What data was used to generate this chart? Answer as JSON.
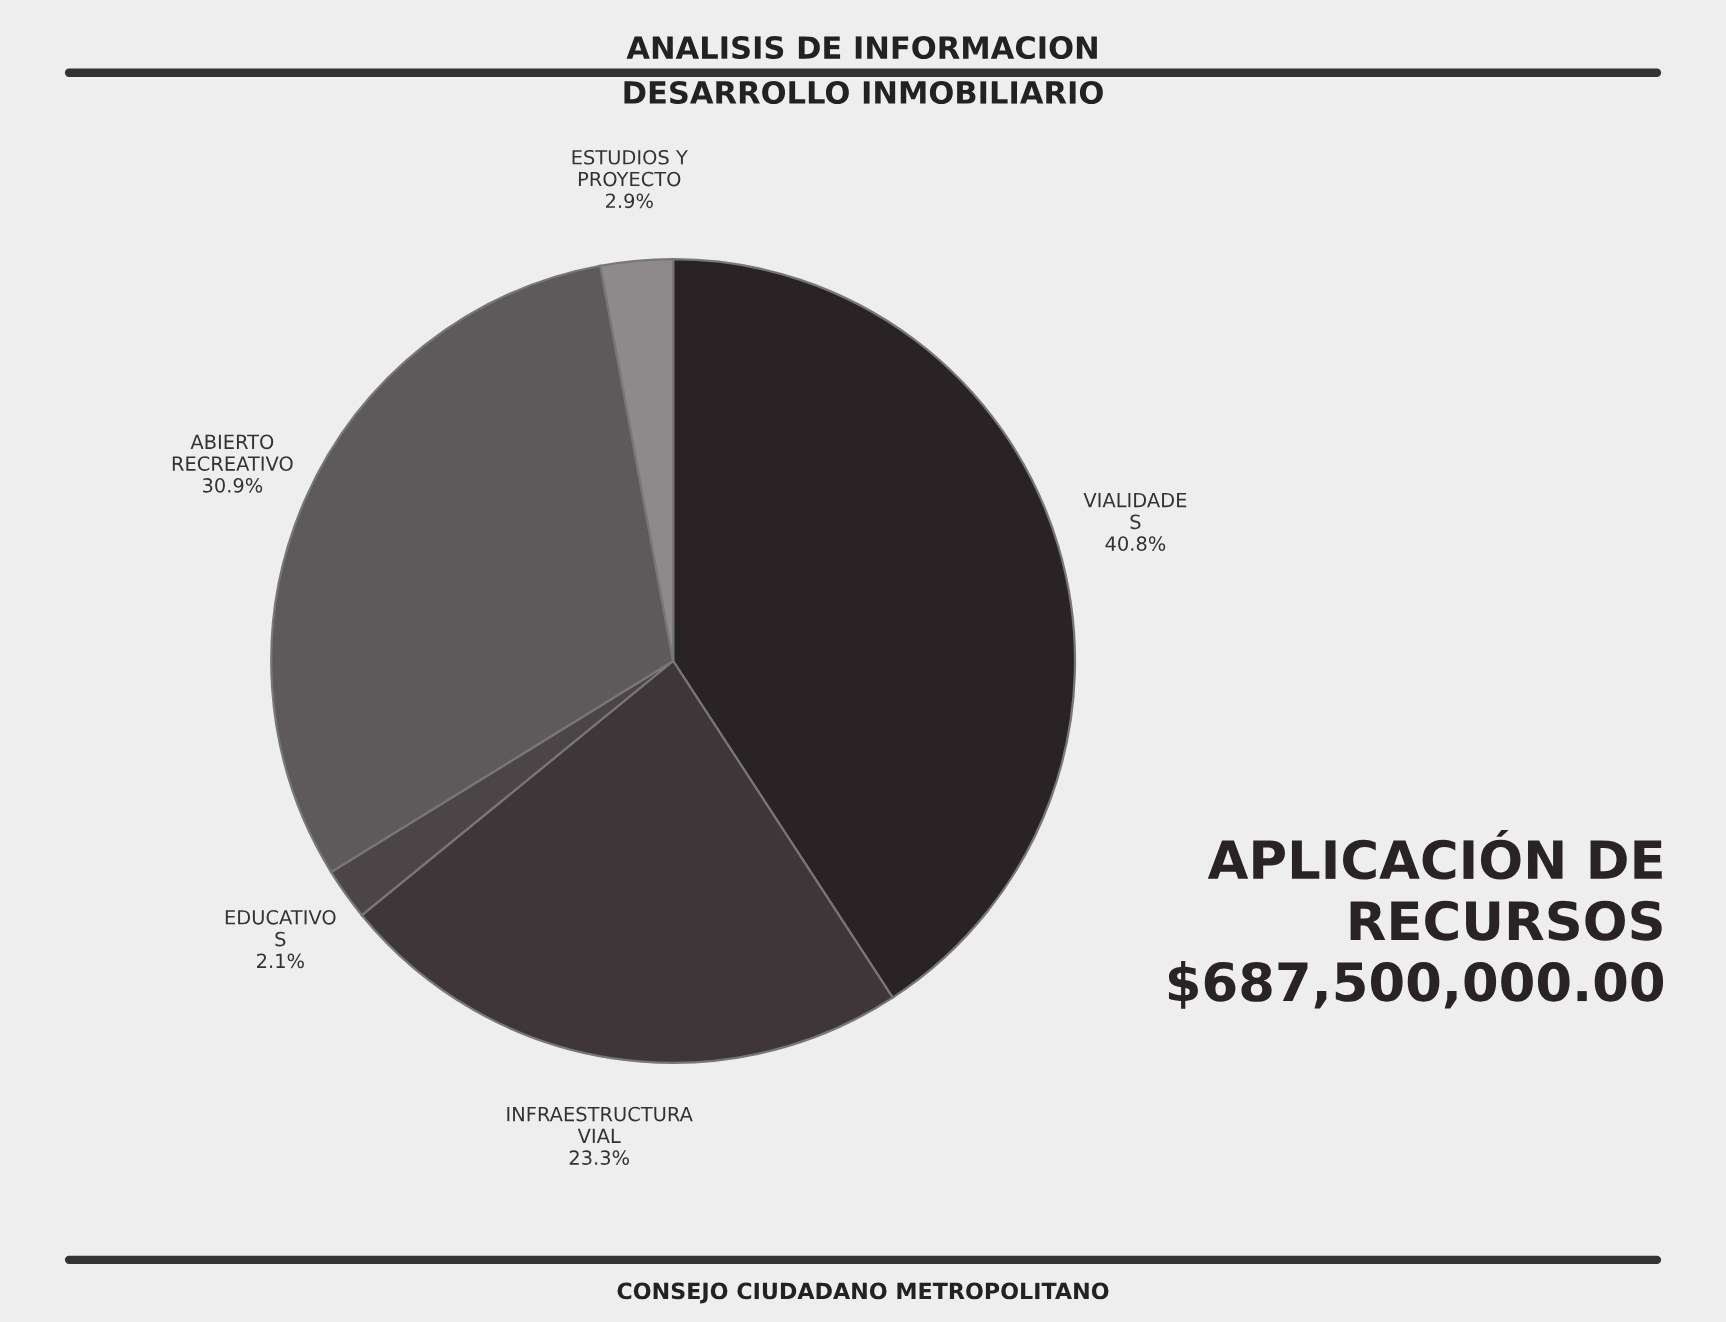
{
  "chart_data": {
    "type": "pie",
    "title": "ANALISIS DE INFORMACION",
    "subtitle": "DESARROLLO INMOBILIARIO",
    "categories": [
      "VIALIDADE\nS",
      "INFRAESTRUCTURA\nVIAL",
      "EDUCATIVO\nS",
      "ABIERTO\nRECREATIVO",
      "ESTUDIOS Y\nPROYECTO"
    ],
    "values": [
      40.8,
      23.3,
      2.1,
      30.9,
      2.9
    ],
    "value_labels": [
      "40.8%",
      "23.3%",
      "2.1%",
      "30.9%",
      "2.9%"
    ],
    "colors": [
      "#2a2325",
      "#3e3638",
      "#4c4547",
      "#5e595a",
      "#8e8a8b"
    ],
    "annotations": [
      "APLICACIÓN DE\nRECURSOS\n$687,500,000.00",
      "CONSEJO CIUDADANO METROPOLITANO"
    ]
  }
}
